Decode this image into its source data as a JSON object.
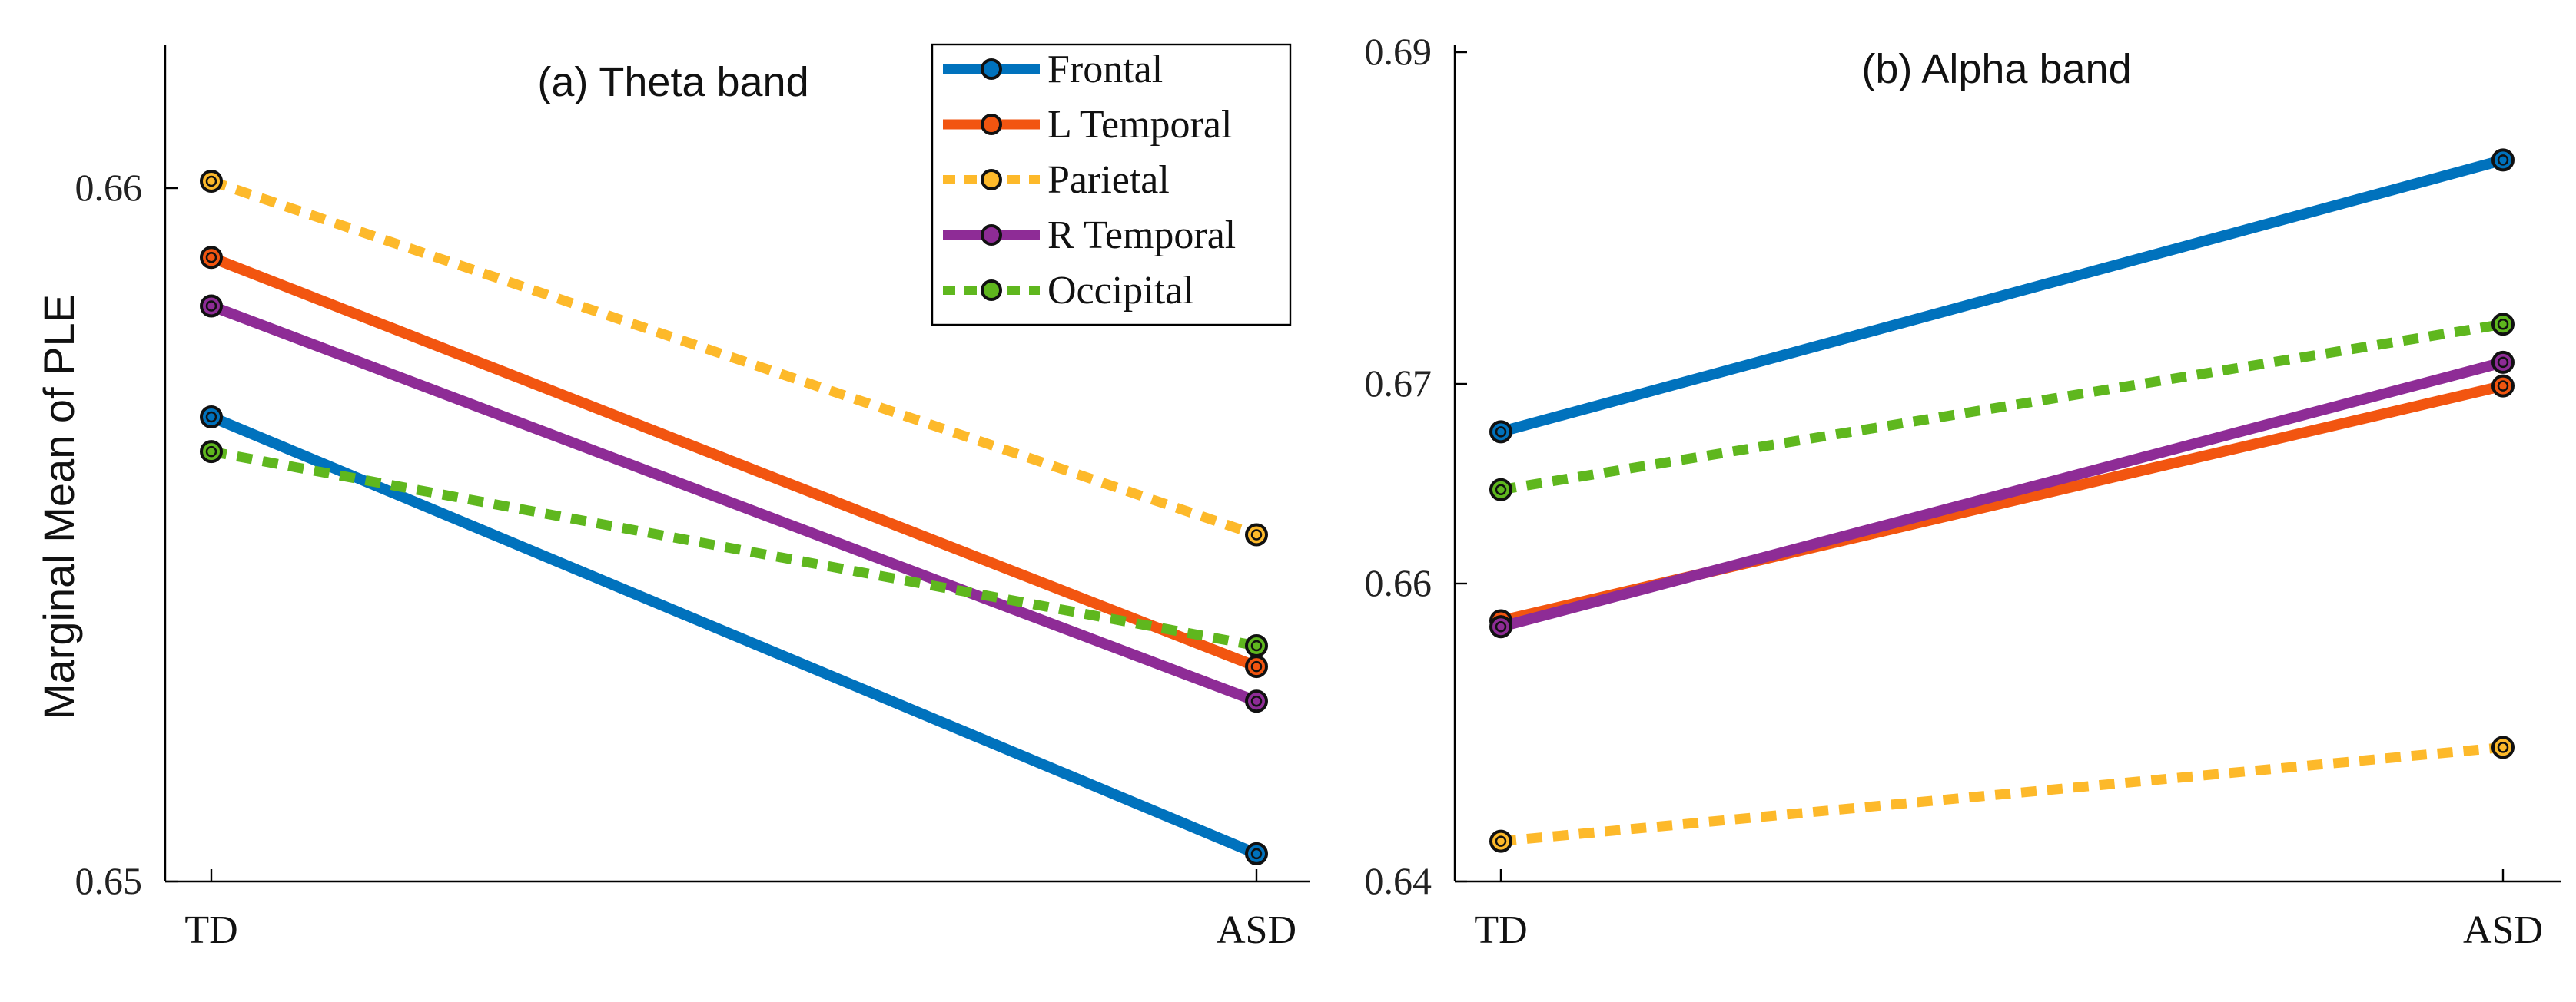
{
  "y_axis_label": "Marginal Mean of PLE",
  "legend": [
    {
      "name": "Frontal",
      "color": "#0072BD",
      "dashed": false
    },
    {
      "name": "L Temporal",
      "color": "#F25510",
      "dashed": false
    },
    {
      "name": "Parietal",
      "color": "#FDB92A",
      "dashed": true
    },
    {
      "name": "R Temporal",
      "color": "#8E2C96",
      "dashed": false
    },
    {
      "name": "Occipital",
      "color": "#5FB71E",
      "dashed": true
    }
  ],
  "chart_data": [
    {
      "type": "line",
      "title": "(a) Theta band",
      "xlabel": "",
      "ylabel": "Marginal Mean of PLE",
      "categories": [
        "TD",
        "ASD"
      ],
      "ylim": [
        0.65,
        0.662
      ],
      "yticks": [
        0.65,
        0.66
      ],
      "ytick_labels": [
        "0.65",
        "0.66"
      ],
      "series": [
        {
          "name": "Frontal",
          "values": [
            0.6567,
            0.6504
          ]
        },
        {
          "name": "L Temporal",
          "values": [
            0.659,
            0.6531
          ]
        },
        {
          "name": "Parietal",
          "values": [
            0.6601,
            0.655
          ]
        },
        {
          "name": "R Temporal",
          "values": [
            0.6583,
            0.6526
          ]
        },
        {
          "name": "Occipital",
          "values": [
            0.6562,
            0.6534
          ]
        }
      ]
    },
    {
      "type": "line",
      "title": "(b) Alpha band",
      "xlabel": "",
      "ylabel": "",
      "categories": [
        "TD",
        "ASD"
      ],
      "ylim": [
        0.64,
        0.69
      ],
      "yticks": [
        0.64,
        0.66,
        0.67,
        0.69
      ],
      "ytick_labels": [
        "0.64",
        "0.66",
        "0.67",
        "0.69"
      ],
      "series": [
        {
          "name": "Frontal",
          "values": [
            0.6676,
            0.6835
          ]
        },
        {
          "name": "L Temporal",
          "values": [
            0.6575,
            0.6699
          ]
        },
        {
          "name": "Parietal",
          "values": [
            0.6427,
            0.649
          ]
        },
        {
          "name": "R Temporal",
          "values": [
            0.6571,
            0.6713
          ]
        },
        {
          "name": "Occipital",
          "values": [
            0.6647,
            0.6736
          ]
        }
      ]
    }
  ]
}
